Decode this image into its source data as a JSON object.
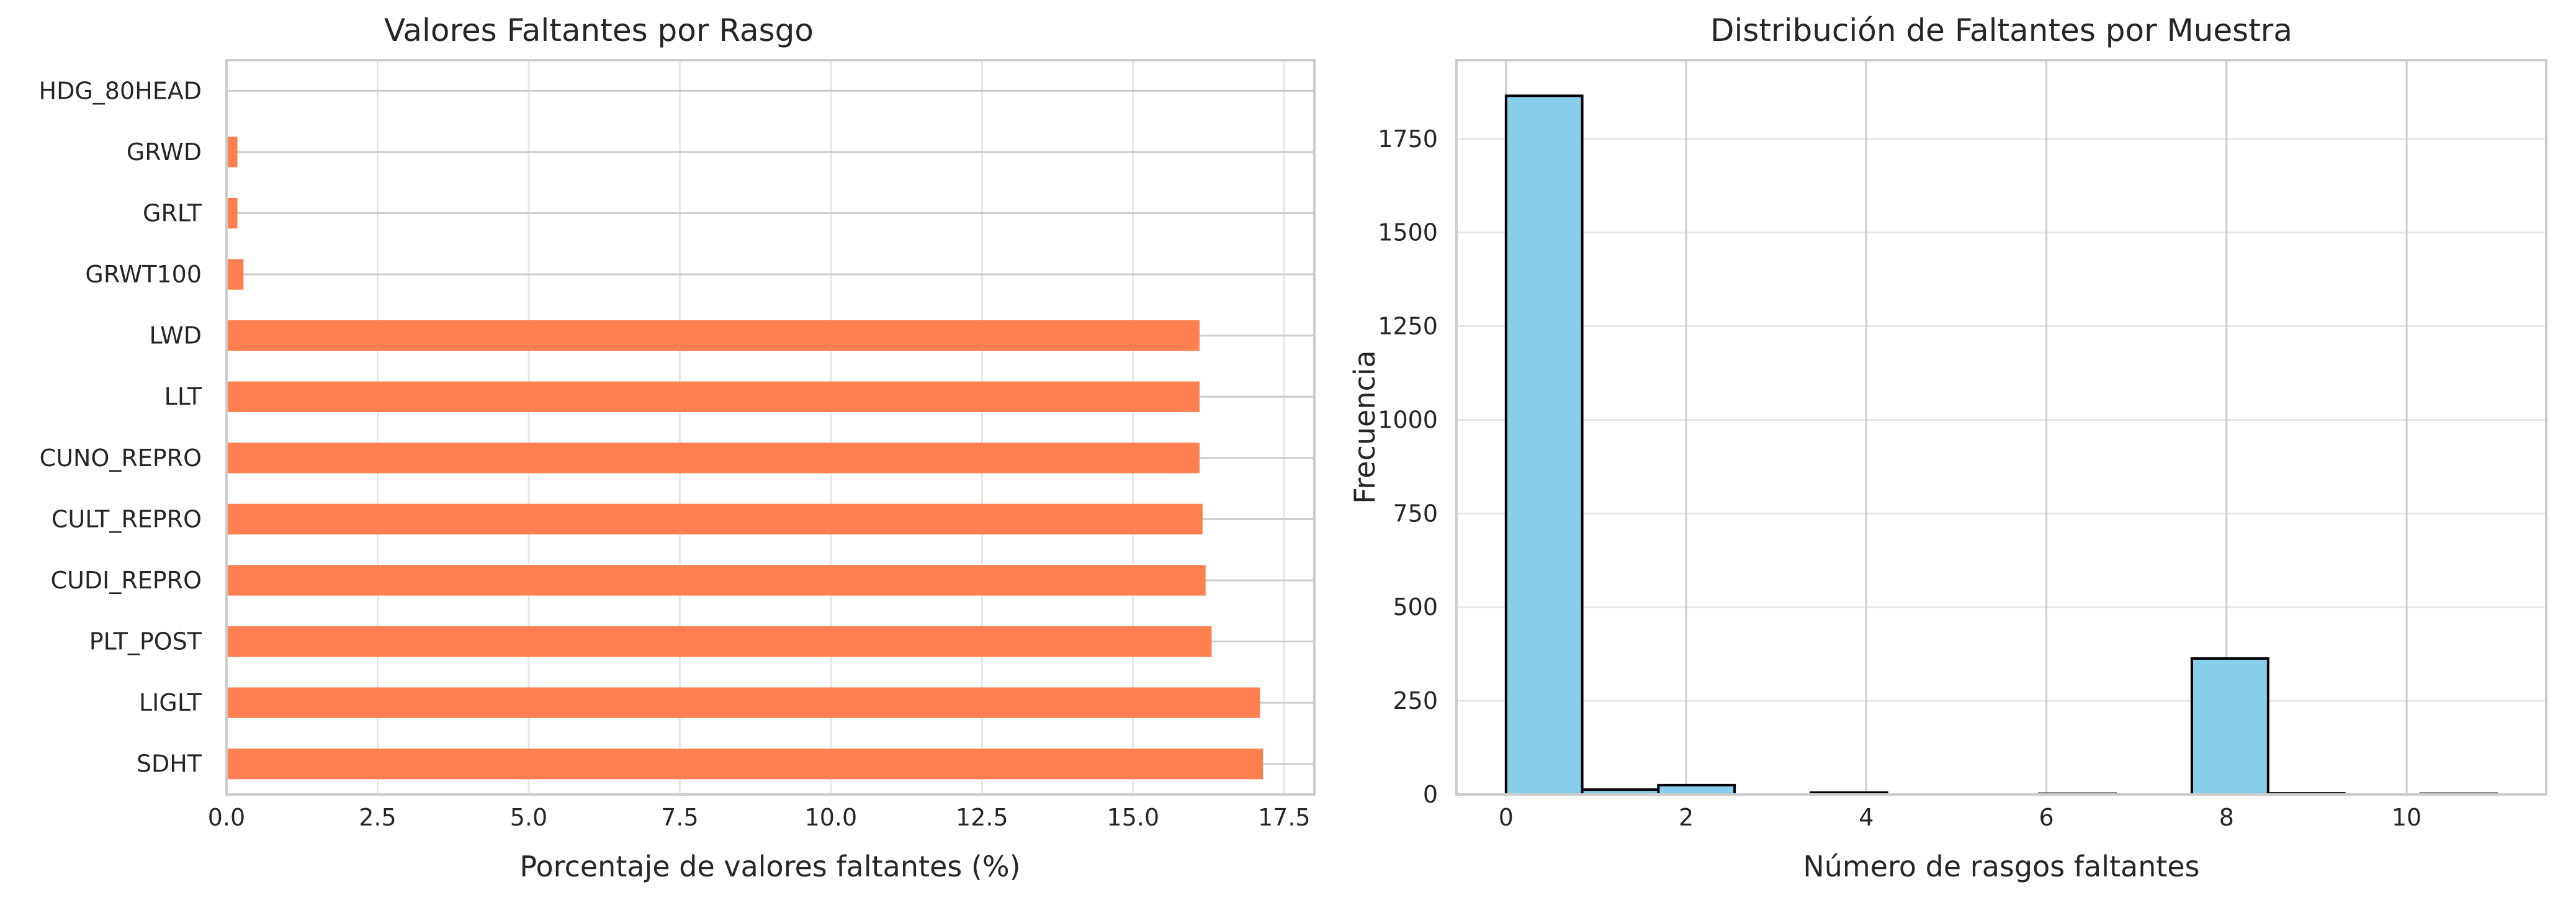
{
  "chart_data": [
    {
      "type": "bar",
      "orientation": "horizontal",
      "title": "Valores Faltantes por Rasgo",
      "xlabel": "Porcentaje de valores faltantes (%)",
      "ylabel": "",
      "categories": [
        "HDG_80HEAD",
        "GRWD",
        "GRLT",
        "GRWT100",
        "LWD",
        "LLT",
        "CUNO_REPRO",
        "CULT_REPRO",
        "CUDI_REPRO",
        "PLT_POST",
        "LIGLT",
        "SDHT"
      ],
      "values": [
        0.0,
        0.18,
        0.18,
        0.28,
        16.1,
        16.1,
        16.1,
        16.15,
        16.2,
        16.3,
        17.1,
        17.15
      ],
      "xlim": [
        0,
        18
      ],
      "xticks": [
        "0.0",
        "2.5",
        "5.0",
        "7.5",
        "10.0",
        "12.5",
        "15.0",
        "17.5"
      ],
      "grid": true,
      "color": "#ff7f50"
    },
    {
      "type": "bar",
      "subtype": "histogram",
      "title": "Distribución de Faltantes por Muestra",
      "xlabel": "Número de rasgos faltantes",
      "ylabel": "Frecuencia",
      "bins": [
        {
          "start": 0.0,
          "end": 0.846,
          "count": 1865
        },
        {
          "start": 0.846,
          "end": 1.692,
          "count": 13
        },
        {
          "start": 1.692,
          "end": 2.538,
          "count": 25
        },
        {
          "start": 2.538,
          "end": 3.385,
          "count": 0
        },
        {
          "start": 3.385,
          "end": 4.231,
          "count": 5
        },
        {
          "start": 4.231,
          "end": 5.077,
          "count": 0
        },
        {
          "start": 5.077,
          "end": 5.923,
          "count": 0
        },
        {
          "start": 5.923,
          "end": 6.769,
          "count": 2
        },
        {
          "start": 6.769,
          "end": 7.615,
          "count": 0
        },
        {
          "start": 7.615,
          "end": 8.462,
          "count": 363
        },
        {
          "start": 8.462,
          "end": 9.308,
          "count": 3
        },
        {
          "start": 9.308,
          "end": 10.154,
          "count": 0
        },
        {
          "start": 10.154,
          "end": 11.0,
          "count": 2
        }
      ],
      "xlim": [
        -0.55,
        11.55
      ],
      "ylim": [
        0,
        1960
      ],
      "xticks": [
        "0",
        "2",
        "4",
        "6",
        "8",
        "10"
      ],
      "yticks": [
        "0",
        "250",
        "500",
        "750",
        "1000",
        "1250",
        "1500",
        "1750"
      ],
      "grid": true,
      "color": "#87ceeb",
      "edgecolor": "#000000"
    }
  ]
}
